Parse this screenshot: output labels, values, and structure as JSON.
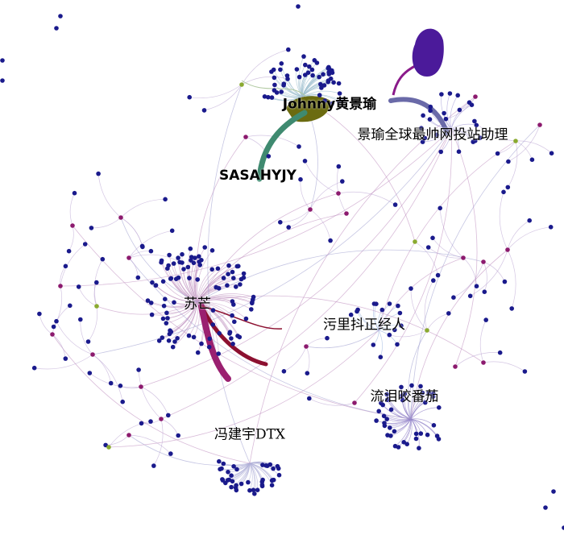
{
  "graph": {
    "labels": {
      "su_mang": "苏芒",
      "johnny": "Johnny黄景瑜",
      "assistant": "景瑜全球最帅网投站助理",
      "sasahyjy": "SASAHYJY",
      "wuli": "污里抖正经人",
      "tomato": "流泪咬番茄",
      "feng": "冯建宇DTX"
    },
    "colors": {
      "leaf_node": "#1a1a8c",
      "mid_node": "#8c1a6e",
      "hub_olive": "#6b6b10",
      "blob_purple": "#4b1a9a",
      "edge_teal": "#3f8a70",
      "edge_slate": "#6a6aa8",
      "edge_crimson": "#8c1030",
      "edge_magenta": "#9a2070",
      "thin_edge": "#b8a8d0"
    }
  }
}
